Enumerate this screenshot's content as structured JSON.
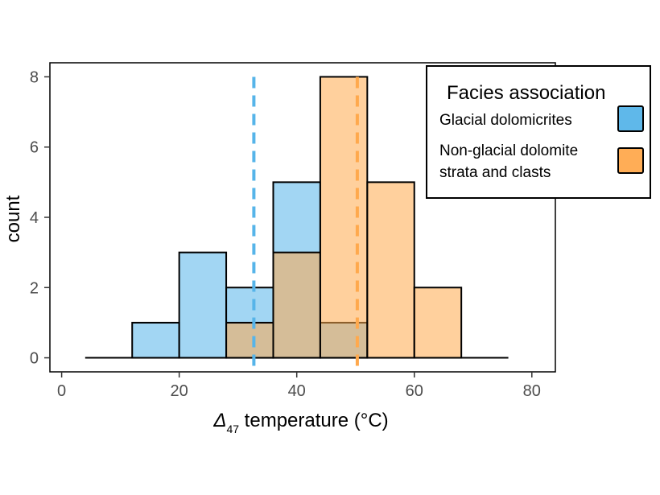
{
  "chart_data": {
    "type": "histogram",
    "title": "",
    "xlabel_symbol": "Δ",
    "xlabel_subscript": "47",
    "xlabel_rest": " temperature (°C)",
    "ylabel": "count",
    "xlim": [
      -2,
      84
    ],
    "ylim": [
      -0.4,
      8.4
    ],
    "xticks": [
      0,
      20,
      40,
      60,
      80
    ],
    "yticks": [
      0,
      2,
      4,
      6,
      8
    ],
    "bin_edges": [
      4,
      12,
      20,
      28,
      36,
      44,
      52,
      60,
      68,
      76
    ],
    "grid": false,
    "legend": {
      "title": "Facies association",
      "placement": "top-right",
      "entries": [
        {
          "label_lines": [
            "Glacial dolomicrites"
          ],
          "color": "#56B4E9"
        },
        {
          "label_lines": [
            "Non-glacial dolomite",
            "strata and clasts"
          ],
          "color": "#FFA94D"
        }
      ]
    },
    "series": [
      {
        "name": "Glacial dolomicrites",
        "color": "#56B4E9",
        "counts": [
          0,
          1,
          3,
          2,
          5,
          1,
          0,
          0,
          0
        ],
        "mean_line_x": 32.7
      },
      {
        "name": "Non-glacial dolomite strata and clasts",
        "color": "#FFA94D",
        "counts": [
          0,
          0,
          0,
          1,
          3,
          8,
          5,
          2,
          0
        ],
        "mean_line_x": 50.3
      }
    ]
  }
}
